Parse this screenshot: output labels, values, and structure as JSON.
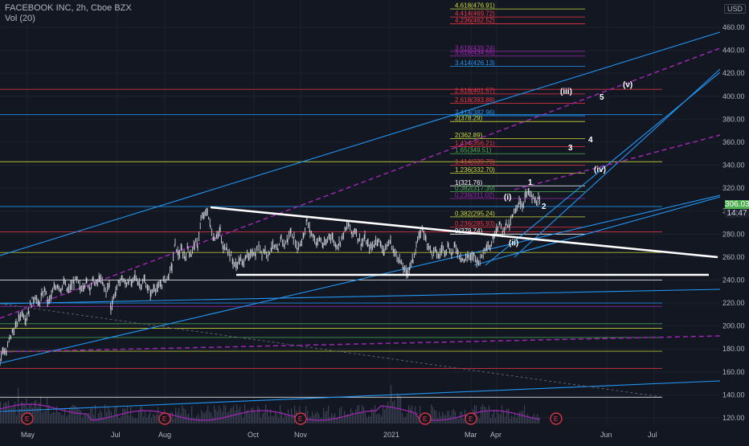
{
  "header": {
    "symbol_line": "FACEBOOK INC, 2h, Cboe BZX",
    "volume_label": "Vol (20)"
  },
  "currency": "USD",
  "last_price": "306.03",
  "countdown": "14:47",
  "colors": {
    "background": "#131722",
    "grid": "#1e2230",
    "candle": "#d1d4dc",
    "trendline_white": "#ffffff",
    "channel_blue": "#2196f3",
    "magenta_dashed": "#9c27b0",
    "red_level": "#f23645",
    "yellow_level": "#cddc39",
    "green_level": "#4caf50",
    "volume_ma": "#9c27b0",
    "earnings_marker": "#f23645"
  },
  "chart_data": {
    "type": "candlestick",
    "title": "FACEBOOK INC, 2h, Cboe BZX",
    "y_ticks": [
      "460.00",
      "440.00",
      "420.00",
      "400.00",
      "380.00",
      "360.00",
      "340.00",
      "320.00",
      "300.00",
      "280.00",
      "260.00",
      "240.00",
      "220.00",
      "200.00",
      "180.00",
      "160.00",
      "140.00",
      "120.00"
    ],
    "x_ticks": [
      "May",
      "Jul",
      "Aug",
      "Oct",
      "Nov",
      "2021",
      "Mar",
      "Apr",
      "Jun",
      "Jul"
    ],
    "ylim": [
      115,
      475
    ],
    "price_path": [
      [
        0,
        170
      ],
      [
        4,
        180
      ],
      [
        8,
        176
      ],
      [
        12,
        190
      ],
      [
        16,
        195
      ],
      [
        20,
        200
      ],
      [
        24,
        208
      ],
      [
        28,
        212
      ],
      [
        32,
        206
      ],
      [
        36,
        214
      ],
      [
        40,
        222
      ],
      [
        44,
        226
      ],
      [
        48,
        218
      ],
      [
        52,
        226
      ],
      [
        56,
        232
      ],
      [
        60,
        220
      ],
      [
        64,
        226
      ],
      [
        68,
        234
      ],
      [
        72,
        236
      ],
      [
        76,
        232
      ],
      [
        80,
        238
      ],
      [
        84,
        230
      ],
      [
        88,
        234
      ],
      [
        92,
        238
      ],
      [
        96,
        240
      ],
      [
        100,
        232
      ],
      [
        104,
        236
      ],
      [
        108,
        238
      ],
      [
        112,
        234
      ],
      [
        116,
        240
      ],
      [
        120,
        236
      ],
      [
        124,
        242
      ],
      [
        128,
        236
      ],
      [
        132,
        230
      ],
      [
        136,
        236
      ],
      [
        138,
        214
      ],
      [
        140,
        222
      ],
      [
        144,
        230
      ],
      [
        148,
        238
      ],
      [
        152,
        242
      ],
      [
        156,
        236
      ],
      [
        160,
        240
      ],
      [
        164,
        236
      ],
      [
        168,
        244
      ],
      [
        172,
        238
      ],
      [
        176,
        236
      ],
      [
        180,
        240
      ],
      [
        184,
        232
      ],
      [
        188,
        228
      ],
      [
        192,
        234
      ],
      [
        196,
        232
      ],
      [
        200,
        236
      ],
      [
        210,
        244
      ],
      [
        214,
        252
      ],
      [
        218,
        272
      ],
      [
        222,
        262
      ],
      [
        226,
        266
      ],
      [
        230,
        260
      ],
      [
        234,
        268
      ],
      [
        238,
        262
      ],
      [
        242,
        272
      ],
      [
        246,
        270
      ],
      [
        250,
        292
      ],
      [
        254,
        296
      ],
      [
        258,
        300
      ],
      [
        262,
        286
      ],
      [
        266,
        276
      ],
      [
        270,
        280
      ],
      [
        274,
        282
      ],
      [
        278,
        266
      ],
      [
        282,
        270
      ],
      [
        286,
        262
      ],
      [
        290,
        256
      ],
      [
        294,
        252
      ],
      [
        298,
        258
      ],
      [
        302,
        254
      ],
      [
        306,
        262
      ],
      [
        310,
        258
      ],
      [
        314,
        266
      ],
      [
        318,
        262
      ],
      [
        322,
        270
      ],
      [
        326,
        264
      ],
      [
        330,
        266
      ],
      [
        334,
        262
      ],
      [
        338,
        270
      ],
      [
        342,
        268
      ],
      [
        346,
        264
      ],
      [
        350,
        278
      ],
      [
        354,
        270
      ],
      [
        358,
        276
      ],
      [
        362,
        282
      ],
      [
        366,
        276
      ],
      [
        370,
        268
      ],
      [
        374,
        272
      ],
      [
        378,
        280
      ],
      [
        382,
        292
      ],
      [
        386,
        282
      ],
      [
        390,
        278
      ],
      [
        394,
        272
      ],
      [
        398,
        276
      ],
      [
        402,
        270
      ],
      [
        406,
        272
      ],
      [
        410,
        280
      ],
      [
        414,
        276
      ],
      [
        418,
        270
      ],
      [
        422,
        272
      ],
      [
        426,
        278
      ],
      [
        430,
        284
      ],
      [
        434,
        288
      ],
      [
        438,
        280
      ],
      [
        442,
        284
      ],
      [
        446,
        276
      ],
      [
        450,
        272
      ],
      [
        454,
        276
      ],
      [
        458,
        270
      ],
      [
        462,
        268
      ],
      [
        466,
        272
      ],
      [
        470,
        276
      ],
      [
        474,
        270
      ],
      [
        478,
        266
      ],
      [
        482,
        270
      ],
      [
        486,
        274
      ],
      [
        490,
        264
      ],
      [
        494,
        262
      ],
      [
        498,
        256
      ],
      [
        502,
        250
      ],
      [
        506,
        246
      ],
      [
        510,
        252
      ],
      [
        514,
        258
      ],
      [
        518,
        270
      ],
      [
        522,
        278
      ],
      [
        526,
        286
      ],
      [
        530,
        274
      ],
      [
        534,
        270
      ],
      [
        538,
        262
      ],
      [
        542,
        266
      ],
      [
        546,
        260
      ],
      [
        550,
        268
      ],
      [
        554,
        266
      ],
      [
        558,
        270
      ],
      [
        562,
        262
      ],
      [
        566,
        270
      ],
      [
        570,
        264
      ],
      [
        574,
        260
      ],
      [
        578,
        256
      ],
      [
        582,
        262
      ],
      [
        586,
        258
      ],
      [
        590,
        262
      ],
      [
        594,
        256
      ],
      [
        598,
        258
      ],
      [
        602,
        266
      ],
      [
        606,
        272
      ],
      [
        610,
        268
      ],
      [
        614,
        278
      ],
      [
        618,
        286
      ],
      [
        622,
        288
      ],
      [
        626,
        282
      ],
      [
        630,
        290
      ],
      [
        634,
        286
      ],
      [
        638,
        296
      ],
      [
        642,
        300
      ],
      [
        646,
        310
      ],
      [
        650,
        304
      ],
      [
        654,
        314
      ],
      [
        658,
        316
      ],
      [
        662,
        312
      ],
      [
        666,
        308
      ],
      [
        670,
        310
      ],
      [
        672,
        306
      ]
    ],
    "volume_note": "volume histogram with 20-period moving average",
    "trendlines": {
      "triangle_upper": {
        "from": [
          "Aug",
          "304"
        ],
        "to": [
          "Jul",
          "260"
        ]
      },
      "triangle_base": {
        "price": "244"
      }
    },
    "horizontal_levels": [
      {
        "price": 406,
        "color": "red"
      },
      {
        "price": 384,
        "color": "blue"
      },
      {
        "price": 343,
        "color": "yellow"
      },
      {
        "price": 304,
        "color": "blue"
      },
      {
        "price": 282,
        "color": "red"
      },
      {
        "price": 264,
        "color": "yellow"
      },
      {
        "price": 240,
        "color": "white"
      },
      {
        "price": 220,
        "color": "blue"
      },
      {
        "price": 217,
        "color": "purple"
      },
      {
        "price": 202,
        "color": "green"
      },
      {
        "price": 198,
        "color": "yellow"
      },
      {
        "price": 190,
        "color": "green"
      },
      {
        "price": 178,
        "color": "yellow"
      },
      {
        "price": 163,
        "color": "red"
      },
      {
        "price": 138,
        "color": "white"
      }
    ],
    "fib_labels": [
      {
        "text": "4.618(476.91)",
        "price": 476,
        "color": "yellow"
      },
      {
        "text": "4.414(469.72)",
        "price": 469,
        "color": "red"
      },
      {
        "text": "4.236(462.52)",
        "price": 463,
        "color": "red"
      },
      {
        "text": "3.618(439.24)",
        "price": 439,
        "color": "purple"
      },
      {
        "text": "3.618(434.55)",
        "price": 435,
        "color": "purple"
      },
      {
        "text": "3.414(426.13)",
        "price": 426,
        "color": "blue"
      },
      {
        "text": "2.618(401.57)",
        "price": 402,
        "color": "red"
      },
      {
        "text": "2.618(393.88)",
        "price": 394,
        "color": "red"
      },
      {
        "text": "2.414(382.96)",
        "price": 383,
        "color": "blue"
      },
      {
        "text": "2(378.29)",
        "price": 378,
        "color": "yellow"
      },
      {
        "text": "2(362.89)",
        "price": 363,
        "color": "yellow"
      },
      {
        "text": "1.414(356.21)",
        "price": 356,
        "color": "red"
      },
      {
        "text": "1.65(349.51)",
        "price": 350,
        "color": "green"
      },
      {
        "text": "1.414(339.79)",
        "price": 340,
        "color": "red"
      },
      {
        "text": "1.236(332.70)",
        "price": 333,
        "color": "yellow"
      },
      {
        "text": "1(321.76)",
        "price": 322,
        "color": "white"
      },
      {
        "text": "0.382(317.39)",
        "price": 317,
        "color": "green"
      },
      {
        "text": "0.236(311.02)",
        "price": 311,
        "color": "purple"
      },
      {
        "text": "0.382(295.24)",
        "price": 295,
        "color": "yellow"
      },
      {
        "text": "0.236(285.93)",
        "price": 286,
        "color": "red"
      },
      {
        "text": "0(279.74)",
        "price": 280,
        "color": "white"
      }
    ],
    "wave_labels": [
      {
        "text": "(v)",
        "x": 775,
        "price": 408
      },
      {
        "text": "5",
        "x": 746,
        "price": 397
      },
      {
        "text": "(iii)",
        "x": 697,
        "price": 402
      },
      {
        "text": "4",
        "x": 732,
        "price": 360
      },
      {
        "text": "3",
        "x": 707,
        "price": 353
      },
      {
        "text": "(iv)",
        "x": 739,
        "price": 334
      },
      {
        "text": "1",
        "x": 657,
        "price": 323
      },
      {
        "text": "(i)",
        "x": 627,
        "price": 310
      },
      {
        "text": "2",
        "x": 674,
        "price": 302
      },
      {
        "text": "(ii)",
        "x": 633,
        "price": 270
      }
    ],
    "earnings_markers": [
      "E",
      "E",
      "E",
      "E",
      "E",
      "E"
    ]
  }
}
